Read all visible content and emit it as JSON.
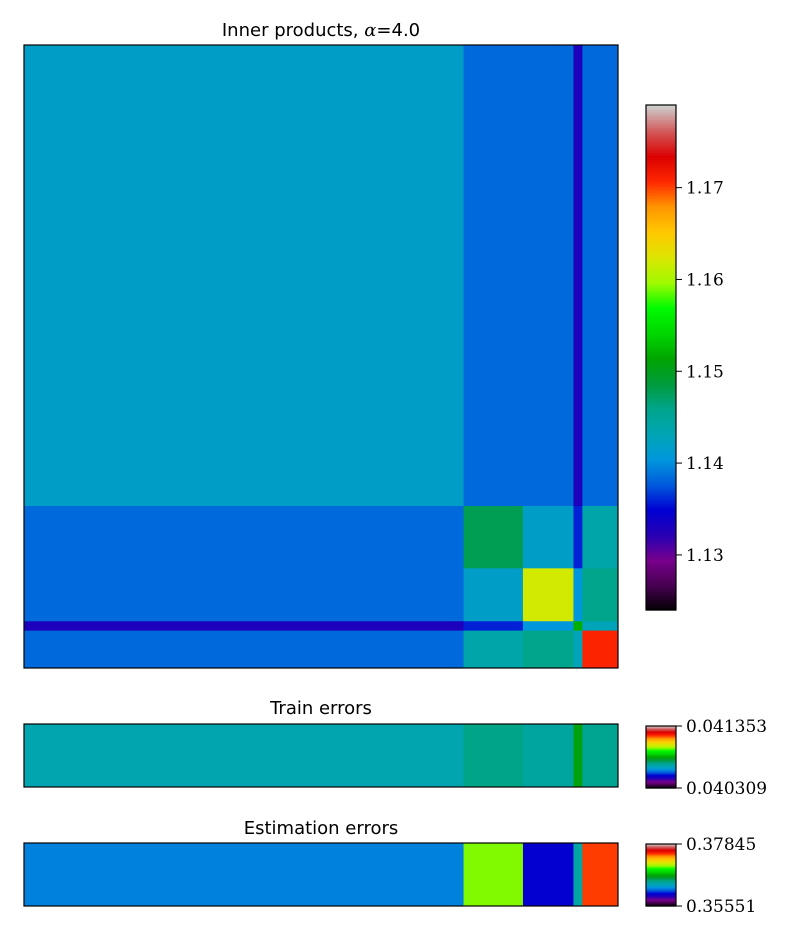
{
  "chart_data": [
    {
      "type": "heatmap",
      "title_prefix": "Inner products, ",
      "title_symbol": "α",
      "title_suffix": "=4.0",
      "xlabel": "",
      "ylabel": "",
      "x_ticks": false,
      "y_ticks": false,
      "block_boundaries": [
        0,
        0.74,
        0.84,
        0.925,
        0.94,
        1.0
      ],
      "values": [
        [
          1.142,
          1.1385,
          1.1385,
          1.133,
          1.1385
        ],
        [
          1.1385,
          1.148,
          1.142,
          1.136,
          1.144
        ],
        [
          1.1385,
          1.142,
          1.162,
          1.1405,
          1.146
        ],
        [
          1.133,
          1.136,
          1.1405,
          1.152,
          1.143
        ],
        [
          1.1385,
          1.144,
          1.146,
          1.143,
          1.171
        ]
      ],
      "colorbar": {
        "vmin": 1.124,
        "vmax": 1.179,
        "ticks": [
          1.13,
          1.14,
          1.15,
          1.16,
          1.17
        ],
        "tick_labels": [
          "1.13",
          "1.14",
          "1.15",
          "1.16",
          "1.17"
        ]
      },
      "colormap": "nipy_spectral"
    },
    {
      "type": "heatmap",
      "title": "Train errors",
      "block_boundaries": [
        0,
        0.74,
        0.84,
        0.925,
        0.94,
        1.0
      ],
      "values": [
        0.04068,
        0.04073,
        0.0407,
        0.04082,
        0.04072
      ],
      "colorbar": {
        "vmin": 0.040309,
        "vmax": 0.041353,
        "tick_labels": [
          "0.041353",
          "0.040309"
        ]
      },
      "colormap": "nipy_spectral"
    },
    {
      "type": "heatmap",
      "title": "Estimation errors",
      "block_boundaries": [
        0,
        0.74,
        0.84,
        0.925,
        0.94,
        1.0
      ],
      "values": [
        0.362,
        0.3702,
        0.36,
        0.364,
        0.3748
      ],
      "colorbar": {
        "vmin": 0.35551,
        "vmax": 0.37845,
        "tick_labels": [
          "0.37845",
          "0.35551"
        ]
      },
      "colormap": "nipy_spectral"
    }
  ]
}
